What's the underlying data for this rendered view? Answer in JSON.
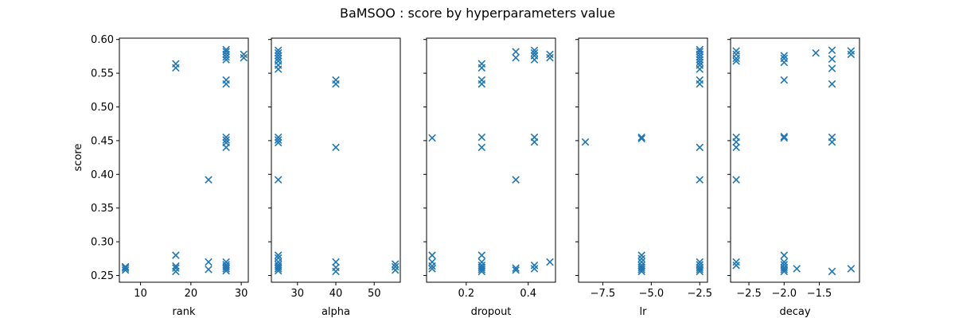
{
  "chart_data": {
    "type": "scatter",
    "title": "BaMSOO : score by hyperparameters value",
    "ylabel": "score",
    "y_ticks": [
      "0.25",
      "0.30",
      "0.35",
      "0.40",
      "0.45",
      "0.50",
      "0.55",
      "0.60"
    ],
    "ylim": [
      0.24,
      0.602
    ],
    "marker": "x",
    "marker_color": "#1f77b4",
    "subplots": [
      {
        "xlabel": "rank",
        "xlim": [
          5.8,
          31.4
        ],
        "x_ticks": [
          {
            "v": 10,
            "t": "10"
          },
          {
            "v": 20,
            "t": "20"
          },
          {
            "v": 30,
            "t": "30"
          }
        ],
        "points": [
          [
            7,
            0.258
          ],
          [
            7,
            0.261
          ],
          [
            7,
            0.263
          ],
          [
            17,
            0.256
          ],
          [
            17,
            0.261
          ],
          [
            17,
            0.264
          ],
          [
            17,
            0.28
          ],
          [
            17,
            0.558
          ],
          [
            17,
            0.564
          ],
          [
            23.5,
            0.259
          ],
          [
            23.5,
            0.27
          ],
          [
            23.5,
            0.392
          ],
          [
            27,
            0.257
          ],
          [
            27,
            0.26
          ],
          [
            27,
            0.263
          ],
          [
            27,
            0.266
          ],
          [
            27,
            0.27
          ],
          [
            27,
            0.44
          ],
          [
            27,
            0.447
          ],
          [
            27,
            0.451
          ],
          [
            27,
            0.455
          ],
          [
            27,
            0.534
          ],
          [
            27,
            0.54
          ],
          [
            27,
            0.57
          ],
          [
            27,
            0.574
          ],
          [
            27,
            0.578
          ],
          [
            27,
            0.582
          ],
          [
            27,
            0.585
          ],
          [
            30.5,
            0.573
          ],
          [
            30.5,
            0.578
          ]
        ]
      },
      {
        "xlabel": "alpha",
        "xlim": [
          23.2,
          56.8
        ],
        "x_ticks": [
          {
            "v": 30,
            "t": "30"
          },
          {
            "v": 40,
            "t": "40"
          },
          {
            "v": 50,
            "t": "50"
          }
        ],
        "points": [
          [
            25,
            0.257
          ],
          [
            25,
            0.26
          ],
          [
            25,
            0.263
          ],
          [
            25,
            0.266
          ],
          [
            25,
            0.27
          ],
          [
            25,
            0.276
          ],
          [
            25,
            0.28
          ],
          [
            25,
            0.392
          ],
          [
            25,
            0.447
          ],
          [
            25,
            0.451
          ],
          [
            25,
            0.455
          ],
          [
            25,
            0.556
          ],
          [
            25,
            0.562
          ],
          [
            25,
            0.568
          ],
          [
            25,
            0.572
          ],
          [
            25,
            0.576
          ],
          [
            25,
            0.58
          ],
          [
            25,
            0.584
          ],
          [
            40,
            0.256
          ],
          [
            40,
            0.262
          ],
          [
            40,
            0.27
          ],
          [
            40,
            0.44
          ],
          [
            40,
            0.534
          ],
          [
            40,
            0.54
          ],
          [
            55.5,
            0.258
          ],
          [
            55.5,
            0.263
          ],
          [
            55.5,
            0.267
          ]
        ]
      },
      {
        "xlabel": "dropout",
        "xlim": [
          0.072,
          0.488
        ],
        "x_ticks": [
          {
            "v": 0.2,
            "t": "0.2"
          },
          {
            "v": 0.4,
            "t": "0.4"
          }
        ],
        "points": [
          [
            0.09,
            0.26
          ],
          [
            0.09,
            0.264
          ],
          [
            0.09,
            0.27
          ],
          [
            0.09,
            0.28
          ],
          [
            0.09,
            0.454
          ],
          [
            0.25,
            0.256
          ],
          [
            0.25,
            0.259
          ],
          [
            0.25,
            0.262
          ],
          [
            0.25,
            0.265
          ],
          [
            0.25,
            0.27
          ],
          [
            0.25,
            0.28
          ],
          [
            0.25,
            0.44
          ],
          [
            0.25,
            0.455
          ],
          [
            0.25,
            0.534
          ],
          [
            0.25,
            0.54
          ],
          [
            0.25,
            0.558
          ],
          [
            0.25,
            0.564
          ],
          [
            0.36,
            0.258
          ],
          [
            0.36,
            0.261
          ],
          [
            0.36,
            0.392
          ],
          [
            0.36,
            0.573
          ],
          [
            0.36,
            0.582
          ],
          [
            0.42,
            0.26
          ],
          [
            0.42,
            0.265
          ],
          [
            0.42,
            0.448
          ],
          [
            0.42,
            0.455
          ],
          [
            0.42,
            0.57
          ],
          [
            0.42,
            0.576
          ],
          [
            0.42,
            0.58
          ],
          [
            0.42,
            0.584
          ],
          [
            0.47,
            0.27
          ],
          [
            0.47,
            0.573
          ],
          [
            0.47,
            0.578
          ]
        ]
      },
      {
        "xlabel": "lr",
        "xlim": [
          -8.75,
          -2.1
        ],
        "x_ticks": [
          {
            "v": -7.5,
            "t": "−7.5"
          },
          {
            "v": -5,
            "t": "−5.0"
          },
          {
            "v": -2.5,
            "t": "−2.5"
          }
        ],
        "points": [
          [
            -8.4,
            0.448
          ],
          [
            -5.5,
            0.256
          ],
          [
            -5.5,
            0.259
          ],
          [
            -5.5,
            0.262
          ],
          [
            -5.5,
            0.265
          ],
          [
            -5.5,
            0.27
          ],
          [
            -5.5,
            0.275
          ],
          [
            -5.5,
            0.28
          ],
          [
            -5.5,
            0.453
          ],
          [
            -5.5,
            0.455
          ],
          [
            -2.5,
            0.256
          ],
          [
            -2.5,
            0.259
          ],
          [
            -2.5,
            0.262
          ],
          [
            -2.5,
            0.266
          ],
          [
            -2.5,
            0.27
          ],
          [
            -2.5,
            0.392
          ],
          [
            -2.5,
            0.44
          ],
          [
            -2.5,
            0.534
          ],
          [
            -2.5,
            0.54
          ],
          [
            -2.5,
            0.556
          ],
          [
            -2.5,
            0.562
          ],
          [
            -2.5,
            0.566
          ],
          [
            -2.5,
            0.57
          ],
          [
            -2.5,
            0.574
          ],
          [
            -2.5,
            0.578
          ],
          [
            -2.5,
            0.582
          ],
          [
            -2.5,
            0.585
          ]
        ]
      },
      {
        "xlabel": "decay",
        "xlim": [
          -2.76,
          -0.93
        ],
        "x_ticks": [
          {
            "v": -2.5,
            "t": "−2.5"
          },
          {
            "v": -2.0,
            "t": "−2.0"
          },
          {
            "v": -1.5,
            "t": "−1.5"
          }
        ],
        "points": [
          [
            -2.68,
            0.265
          ],
          [
            -2.68,
            0.27
          ],
          [
            -2.68,
            0.392
          ],
          [
            -2.68,
            0.44
          ],
          [
            -2.68,
            0.448
          ],
          [
            -2.68,
            0.455
          ],
          [
            -2.68,
            0.568
          ],
          [
            -2.68,
            0.572
          ],
          [
            -2.68,
            0.578
          ],
          [
            -2.68,
            0.583
          ],
          [
            -2.0,
            0.256
          ],
          [
            -2.0,
            0.259
          ],
          [
            -2.0,
            0.262
          ],
          [
            -2.0,
            0.266
          ],
          [
            -2.0,
            0.27
          ],
          [
            -2.0,
            0.28
          ],
          [
            -2.0,
            0.454
          ],
          [
            -2.0,
            0.456
          ],
          [
            -2.0,
            0.54
          ],
          [
            -2.0,
            0.566
          ],
          [
            -2.0,
            0.572
          ],
          [
            -2.0,
            0.576
          ],
          [
            -1.82,
            0.26
          ],
          [
            -1.55,
            0.58
          ],
          [
            -1.32,
            0.256
          ],
          [
            -1.32,
            0.448
          ],
          [
            -1.32,
            0.455
          ],
          [
            -1.32,
            0.534
          ],
          [
            -1.32,
            0.557
          ],
          [
            -1.32,
            0.571
          ],
          [
            -1.32,
            0.584
          ],
          [
            -1.05,
            0.26
          ],
          [
            -1.05,
            0.578
          ],
          [
            -1.05,
            0.583
          ]
        ]
      }
    ]
  }
}
